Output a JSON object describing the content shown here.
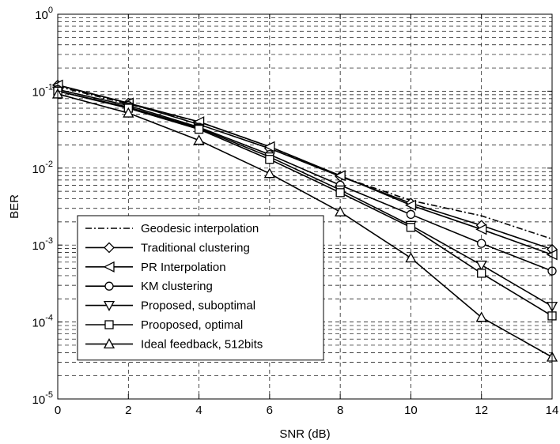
{
  "chart_data": {
    "type": "line",
    "title": "",
    "xlabel": "SNR (dB)",
    "ylabel": "BER",
    "x": [
      0,
      2,
      4,
      6,
      8,
      10,
      12,
      14
    ],
    "xlim": [
      0,
      14
    ],
    "ylim": [
      1e-05,
      1
    ],
    "yscale": "log",
    "grid": true,
    "legend_position": "bottom-left",
    "x_ticks": [
      "0",
      "2",
      "4",
      "6",
      "8",
      "10",
      "12",
      "14"
    ],
    "y_ticks": [
      {
        "base": "10",
        "exp": "-5"
      },
      {
        "base": "10",
        "exp": "-4"
      },
      {
        "base": "10",
        "exp": "-3"
      },
      {
        "base": "10",
        "exp": "-2"
      },
      {
        "base": "10",
        "exp": "-1"
      },
      {
        "base": "10",
        "exp": "0"
      }
    ],
    "series": [
      {
        "name": "Geodesic interpolation",
        "marker": "none",
        "dash": "dashdot",
        "values": [
          0.115,
          0.068,
          0.04,
          0.019,
          0.0078,
          0.0038,
          0.0024,
          0.0012
        ]
      },
      {
        "name": "Traditional clustering",
        "marker": "diamond",
        "dash": "solid",
        "values": [
          0.12,
          0.07,
          0.037,
          0.018,
          0.0078,
          0.0035,
          0.0018,
          0.00088
        ]
      },
      {
        "name": "PR Interpolation",
        "marker": "triangle-left",
        "dash": "solid",
        "values": [
          0.12,
          0.07,
          0.04,
          0.019,
          0.008,
          0.0033,
          0.0016,
          0.00075
        ]
      },
      {
        "name": "KM clustering",
        "marker": "circle",
        "dash": "solid",
        "values": [
          0.105,
          0.065,
          0.034,
          0.015,
          0.006,
          0.0025,
          0.00105,
          0.00046
        ]
      },
      {
        "name": "Proposed, suboptimal",
        "marker": "triangle-down",
        "dash": "solid",
        "values": [
          0.1,
          0.062,
          0.033,
          0.014,
          0.0052,
          0.0018,
          0.00055,
          0.00016
        ]
      },
      {
        "name": "Prooposed, optimal",
        "marker": "square",
        "dash": "solid",
        "values": [
          0.1,
          0.06,
          0.032,
          0.013,
          0.0048,
          0.0017,
          0.00043,
          0.00012
        ]
      },
      {
        "name": "Ideal feedback, 512bits",
        "marker": "triangle-up",
        "dash": "solid",
        "values": [
          0.092,
          0.052,
          0.023,
          0.0085,
          0.0027,
          0.00068,
          0.000115,
          3.5e-05
        ]
      }
    ]
  }
}
